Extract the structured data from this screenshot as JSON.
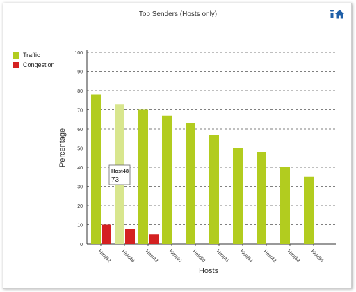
{
  "colors": {
    "traffic": "#b2cc1f",
    "congestion": "#d42121",
    "highlight": "#d8e68e",
    "icon": "#1f5fa8"
  },
  "toolbar": {
    "icons": [
      "info-icon",
      "home-icon"
    ]
  },
  "tooltip": {
    "host": "Host48",
    "value": "73"
  },
  "chart_data": {
    "type": "bar",
    "title": "Top Senders (Hosts only)",
    "xlabel": "Hosts",
    "ylabel": "Percentage",
    "ylim": [
      0,
      100
    ],
    "yticks": [
      "0",
      "10",
      "20",
      "30",
      "40",
      "50",
      "60",
      "70",
      "80",
      "90",
      "100"
    ],
    "grid": true,
    "legend_position": "left",
    "categories": [
      "Host52",
      "Host48",
      "Host43",
      "Host40",
      "Host60",
      "Host45",
      "Host53",
      "Host42",
      "Host68",
      "Host54"
    ],
    "series": [
      {
        "name": "Traffic",
        "values": [
          78,
          73,
          70,
          67,
          63,
          57,
          50,
          48,
          40,
          35
        ]
      },
      {
        "name": "Congestion",
        "values": [
          10,
          8,
          5,
          0,
          0,
          0,
          0,
          0,
          0,
          0
        ]
      }
    ],
    "highlighted_category": "Host48"
  }
}
